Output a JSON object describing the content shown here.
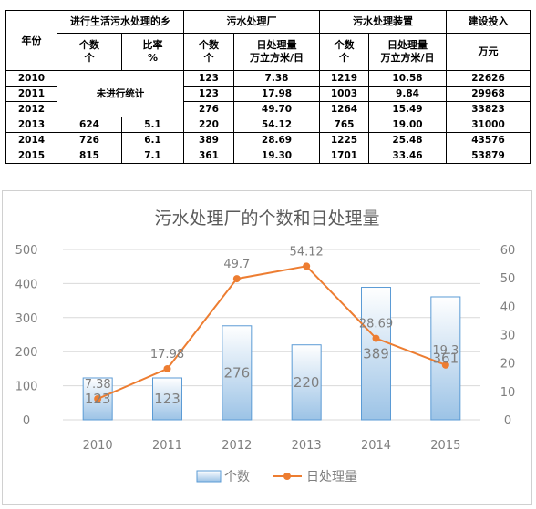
{
  "table": {
    "header_year": "年份",
    "groups": [
      "进行生活污水处理的乡",
      "污水处理厂",
      "污水处理装置",
      "建设投入"
    ],
    "sub": [
      [
        "个数",
        "个"
      ],
      [
        "比率",
        "%"
      ],
      [
        "个数",
        "个"
      ],
      [
        "日处理量",
        "万立方米/日"
      ],
      [
        "个数",
        "个"
      ],
      [
        "日处理量",
        "万立方米/日"
      ],
      [
        "万元",
        ""
      ]
    ],
    "not_counted": "未进行统计",
    "rows": [
      [
        "2010",
        "",
        "",
        "123",
        "7.38",
        "1219",
        "10.58",
        "22626"
      ],
      [
        "2011",
        "",
        "",
        "123",
        "17.98",
        "1003",
        "9.84",
        "29968"
      ],
      [
        "2012",
        "",
        "",
        "276",
        "49.70",
        "1264",
        "15.49",
        "33823"
      ],
      [
        "2013",
        "624",
        "5.1",
        "220",
        "54.12",
        "765",
        "19.00",
        "31000"
      ],
      [
        "2014",
        "726",
        "6.1",
        "389",
        "28.69",
        "1225",
        "25.48",
        "43576"
      ],
      [
        "2015",
        "815",
        "7.1",
        "361",
        "19.30",
        "1701",
        "33.46",
        "53879"
      ]
    ]
  },
  "chart_data": {
    "type": "bar",
    "title": "污水处理厂的个数和日处理量",
    "categories": [
      "2010",
      "2011",
      "2012",
      "2013",
      "2014",
      "2015"
    ],
    "series": [
      {
        "name": "个数",
        "type": "bar",
        "axis": "left",
        "values": [
          123,
          123,
          276,
          220,
          389,
          361
        ],
        "labels": [
          "123",
          "123",
          "276",
          "220",
          "389",
          "361"
        ]
      },
      {
        "name": "日处理量",
        "type": "line",
        "axis": "right",
        "values": [
          7.38,
          17.98,
          49.7,
          54.12,
          28.69,
          19.3
        ],
        "labels": [
          "7.38",
          "17.98",
          "49.7",
          "54.12",
          "28.69",
          "19.3"
        ]
      }
    ],
    "ylim": [
      0,
      500
    ],
    "y_ticks": [
      "0",
      "100",
      "200",
      "300",
      "400",
      "500"
    ],
    "y2lim": [
      0,
      60
    ],
    "y2_ticks": [
      "0",
      "10",
      "20",
      "30",
      "40",
      "50",
      "60"
    ],
    "grid": true,
    "legend": "bottom",
    "colors": {
      "bar": "#5b9bd5",
      "line": "#ed7d31",
      "grid": "#d9d9d9",
      "text": "#7f7f7f"
    }
  }
}
